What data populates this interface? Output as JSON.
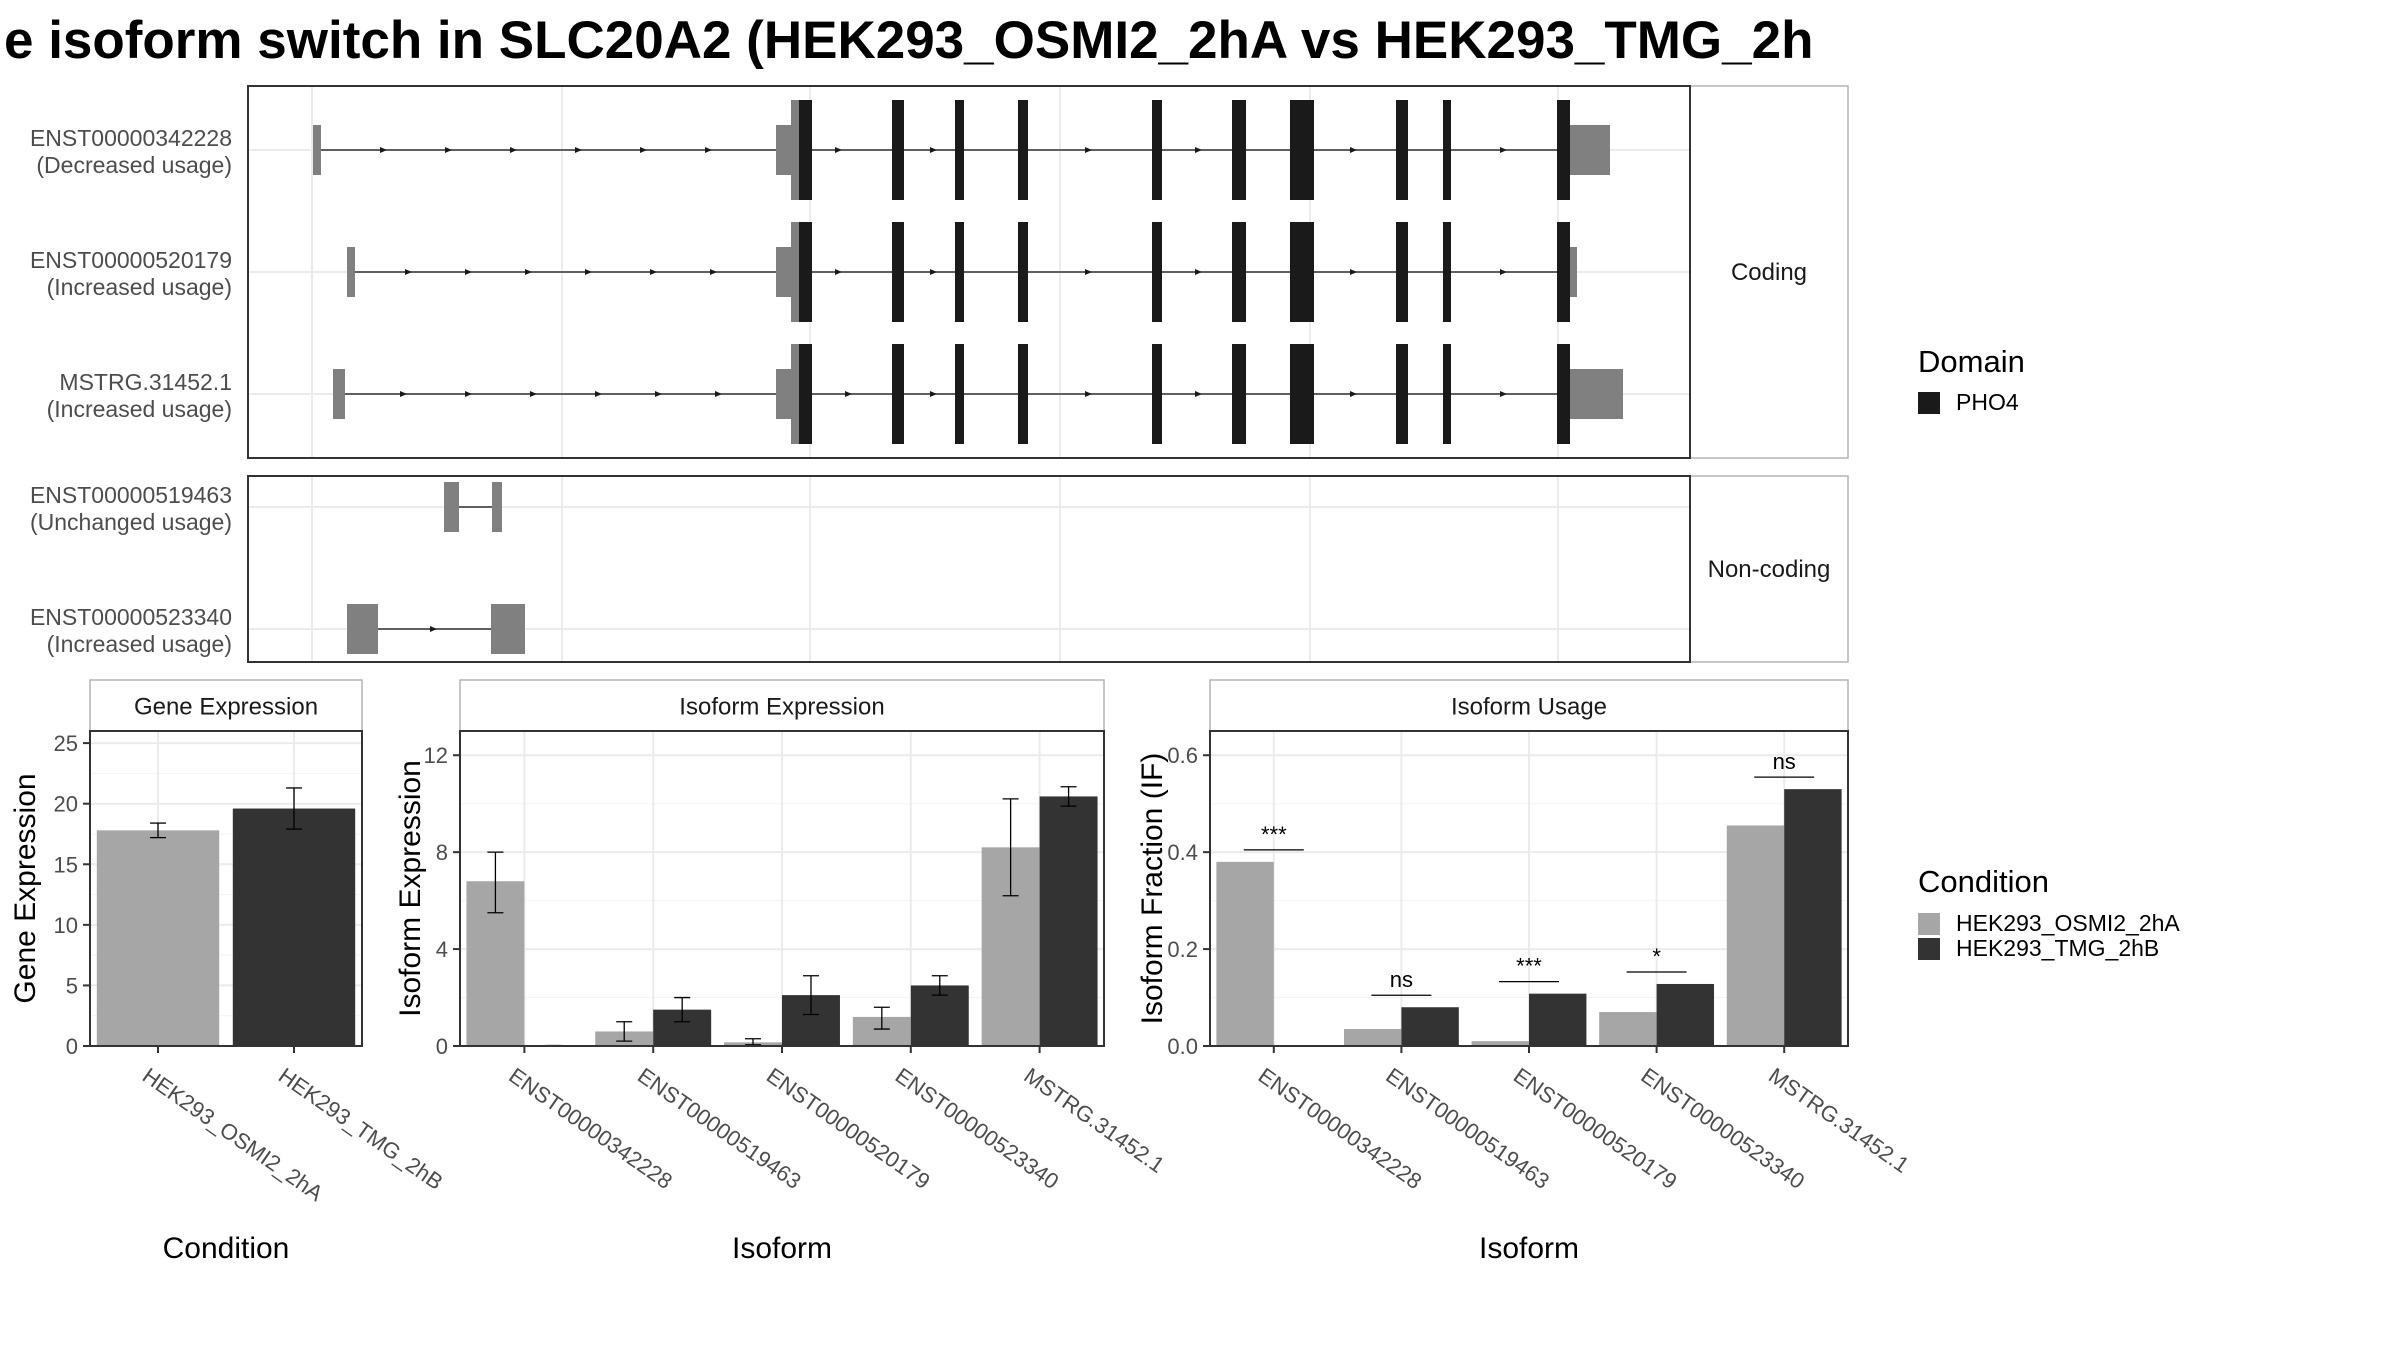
{
  "title": "e isoform switch in SLC20A2 (HEK293_OSMI2_2hA vs HEK293_TMG_2h",
  "colors": {
    "domain": "#1a1a1a",
    "utr": "#808080",
    "cond_a": "#a6a6a6",
    "cond_b": "#333333",
    "grid": "#ebebeb",
    "panel_border": "#333333",
    "strip_border": "#b3b3b3"
  },
  "transcripts": {
    "facets": [
      "Coding",
      "Non-coding"
    ],
    "groups": [
      {
        "facet": "Coding",
        "isoforms": [
          {
            "id": "ENST00000342228",
            "usage": "(Decreased usage)"
          },
          {
            "id": "ENST00000520179",
            "usage": "(Increased usage)"
          },
          {
            "id": "MSTRG.31452.1",
            "usage": "(Increased usage)"
          }
        ]
      },
      {
        "facet": "Non-coding",
        "isoforms": [
          {
            "id": "ENST00000519463",
            "usage": "(Unchanged usage)"
          },
          {
            "id": "ENST00000523340",
            "usage": "(Increased usage)"
          }
        ]
      }
    ]
  },
  "legend_domain": {
    "title": "Domain",
    "items": [
      "PHO4"
    ]
  },
  "legend_condition": {
    "title": "Condition",
    "items": [
      "HEK293_OSMI2_2hA",
      "HEK293_TMG_2hB"
    ]
  },
  "chart_data": [
    {
      "type": "bar",
      "title": "Gene Expression",
      "xlabel": "Condition",
      "ylabel": "Gene Expression",
      "ylim": [
        0,
        26
      ],
      "yticks": [
        0,
        5,
        10,
        15,
        20,
        25
      ],
      "categories": [
        "HEK293_OSMI2_2hA",
        "HEK293_TMG_2hB"
      ],
      "values": [
        17.8,
        19.6
      ],
      "errors": [
        [
          17.2,
          18.4
        ],
        [
          17.9,
          21.3
        ]
      ]
    },
    {
      "type": "bar",
      "title": "Isoform Expression",
      "xlabel": "Isoform",
      "ylabel": "Isoform Expression",
      "ylim": [
        0,
        13
      ],
      "yticks": [
        0,
        4,
        8,
        12
      ],
      "categories": [
        "ENST00000342228",
        "ENST00000519463",
        "ENST00000520179",
        "ENST00000523340",
        "MSTRG.31452.1"
      ],
      "series": [
        {
          "name": "HEK293_OSMI2_2hA",
          "values": [
            6.8,
            0.6,
            0.15,
            1.2,
            8.2
          ],
          "errors": [
            [
              5.5,
              8.0
            ],
            [
              0.2,
              1.0
            ],
            [
              0.05,
              0.3
            ],
            [
              0.7,
              1.6
            ],
            [
              6.2,
              10.2
            ]
          ]
        },
        {
          "name": "HEK293_TMG_2hB",
          "values": [
            0.0,
            1.5,
            2.1,
            2.5,
            10.3
          ],
          "errors": [
            [
              0.0,
              0.02
            ],
            [
              1.0,
              2.0
            ],
            [
              1.3,
              2.9
            ],
            [
              2.1,
              2.9
            ],
            [
              9.9,
              10.7
            ]
          ]
        }
      ]
    },
    {
      "type": "bar",
      "title": "Isoform Usage",
      "xlabel": "Isoform",
      "ylabel": "Isoform Fraction (IF)",
      "ylim": [
        0,
        0.65
      ],
      "yticks": [
        "0.0",
        "0.2",
        "0.4",
        "0.6"
      ],
      "categories": [
        "ENST00000342228",
        "ENST00000519463",
        "ENST00000520179",
        "ENST00000523340",
        "MSTRG.31452.1"
      ],
      "series": [
        {
          "name": "HEK293_OSMI2_2hA",
          "values": [
            0.38,
            0.035,
            0.01,
            0.07,
            0.455
          ]
        },
        {
          "name": "HEK293_TMG_2hB",
          "values": [
            0.0,
            0.08,
            0.108,
            0.128,
            0.53
          ]
        }
      ],
      "significance": [
        "***",
        "ns",
        "***",
        "*",
        "ns"
      ]
    }
  ]
}
